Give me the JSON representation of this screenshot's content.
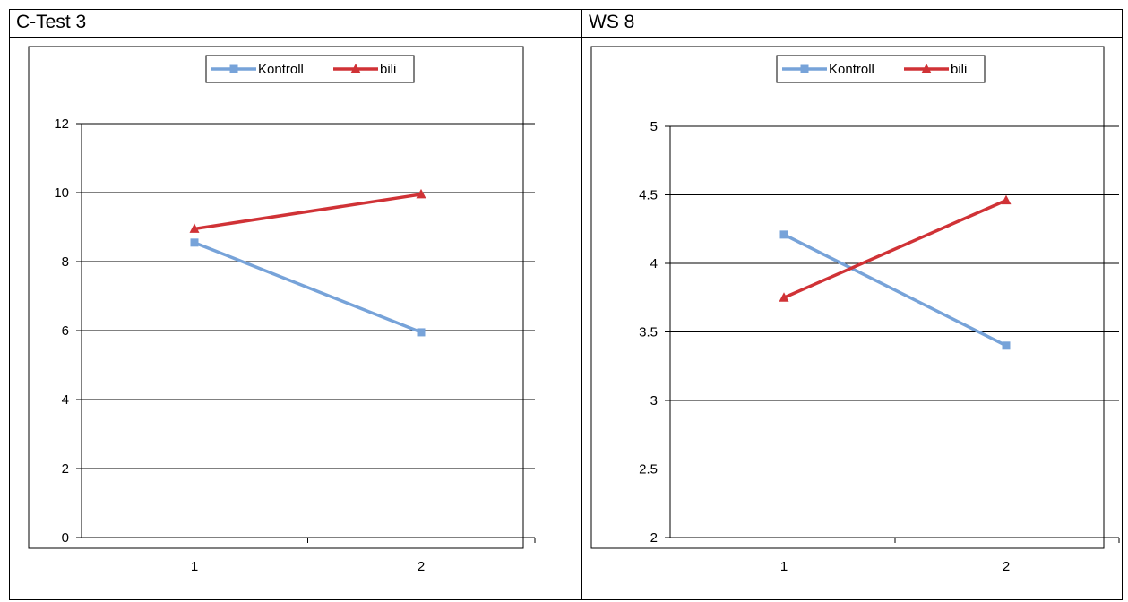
{
  "panels": [
    {
      "title": "C-Test 3"
    },
    {
      "title": "WS 8"
    }
  ],
  "colors": {
    "Kontroll": "#77A3D9",
    "bili": "#D03236"
  },
  "chart_data": [
    {
      "type": "line",
      "title": "",
      "x": [
        "1",
        "2"
      ],
      "ylim": [
        0,
        12
      ],
      "yticks": [
        0,
        2,
        4,
        6,
        8,
        10,
        12
      ],
      "grid": true,
      "legend": "top",
      "series": [
        {
          "name": "Kontroll",
          "marker": "square",
          "values": [
            8.55,
            5.95
          ]
        },
        {
          "name": "bili",
          "marker": "triangle",
          "values": [
            8.95,
            9.95
          ]
        }
      ]
    },
    {
      "type": "line",
      "title": "",
      "x": [
        "1",
        "2"
      ],
      "ylim": [
        2,
        5
      ],
      "yticks": [
        2,
        2.5,
        3,
        3.5,
        4,
        4.5,
        5
      ],
      "grid": true,
      "legend": "top",
      "series": [
        {
          "name": "Kontroll",
          "marker": "square",
          "values": [
            4.21,
            3.4
          ]
        },
        {
          "name": "bili",
          "marker": "triangle",
          "values": [
            3.75,
            4.46
          ]
        }
      ]
    }
  ]
}
